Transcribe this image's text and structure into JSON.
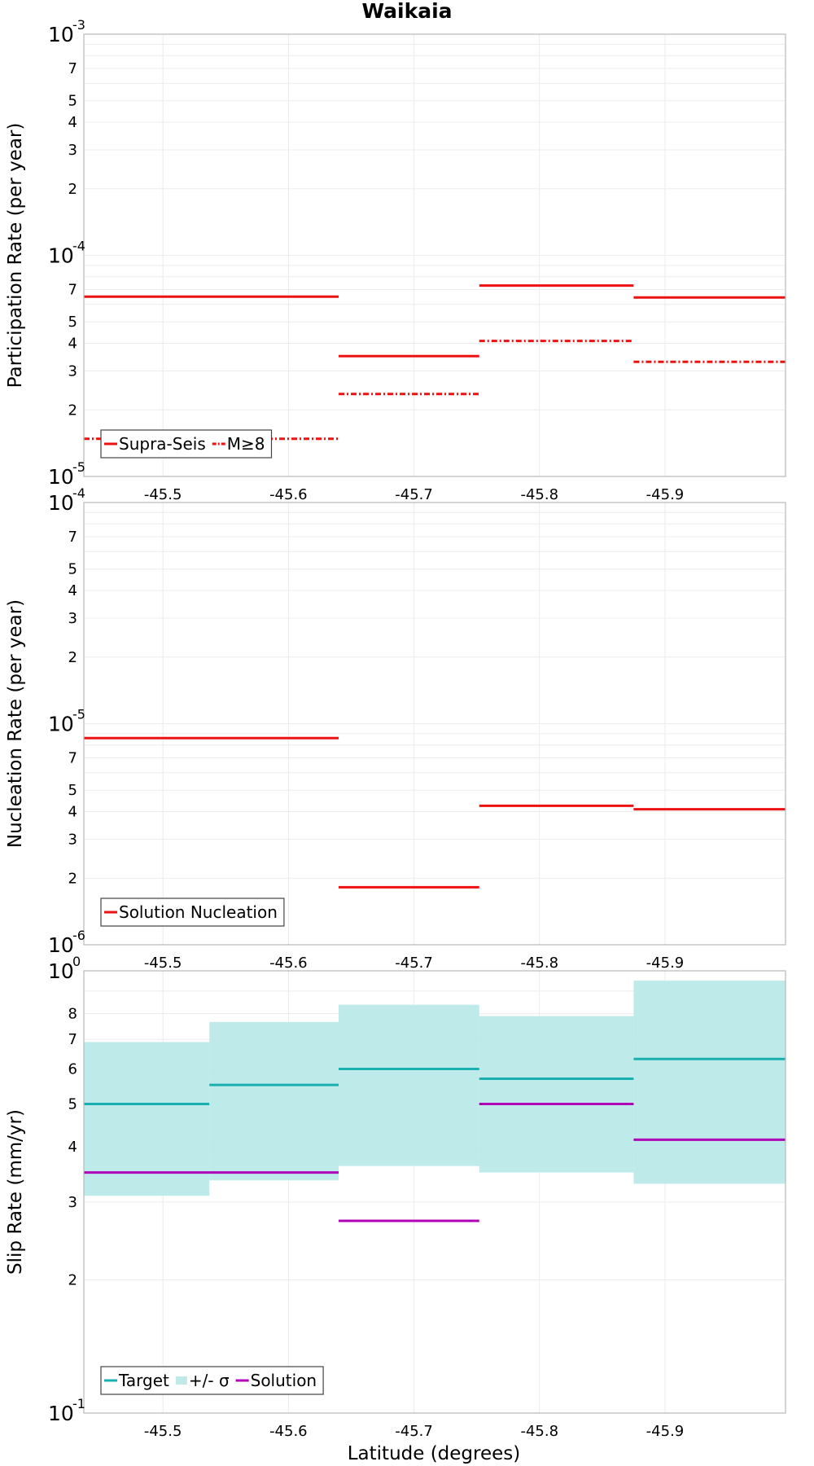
{
  "chart_data": {
    "title": "Waikaia",
    "xlabel": "Latitude (degrees)",
    "xlim": [
      -45.437,
      -45.996
    ],
    "xticks": [
      -45.5,
      -45.6,
      -45.7,
      -45.8,
      -45.9
    ],
    "xtick_labels": [
      "-45.5",
      "-45.6",
      "-45.7",
      "-45.8",
      "-45.9"
    ],
    "panels": [
      {
        "type": "line",
        "ylabel": "Participation Rate (per year)",
        "yscale": "log",
        "ylim": [
          1e-05,
          0.001
        ],
        "decade_labels": [
          {
            "value": 0.001,
            "base": "10",
            "exp": "-3"
          },
          {
            "value": 0.0001,
            "base": "10",
            "exp": "-4"
          },
          {
            "value": 1e-05,
            "base": "10",
            "exp": "-5"
          }
        ],
        "minor_tick_labels": [
          {
            "value": 0.0007,
            "label": "7"
          },
          {
            "value": 0.0005,
            "label": "5"
          },
          {
            "value": 0.0004,
            "label": "4"
          },
          {
            "value": 0.0003,
            "label": "3"
          },
          {
            "value": 0.0002,
            "label": "2"
          },
          {
            "value": 7e-05,
            "label": "7"
          },
          {
            "value": 5e-05,
            "label": "5"
          },
          {
            "value": 4e-05,
            "label": "4"
          },
          {
            "value": 3e-05,
            "label": "3"
          },
          {
            "value": 2e-05,
            "label": "2"
          }
        ],
        "series": [
          {
            "name": "Supra-Seis",
            "color": "#ee1111",
            "dash": "solid",
            "segments": [
              {
                "x0": -45.437,
                "x1": -45.64,
                "y": 6.5e-05
              },
              {
                "x0": -45.64,
                "x1": -45.752,
                "y": 3.5e-05
              },
              {
                "x0": -45.752,
                "x1": -45.875,
                "y": 7.3e-05
              },
              {
                "x0": -45.875,
                "x1": -45.996,
                "y": 6.45e-05
              }
            ]
          },
          {
            "name": "M≥8",
            "color": "#ee1111",
            "dash": "dashdot",
            "segments": [
              {
                "x0": -45.437,
                "x1": -45.64,
                "y": 1.48e-05
              },
              {
                "x0": -45.64,
                "x1": -45.752,
                "y": 2.36e-05
              },
              {
                "x0": -45.752,
                "x1": -45.875,
                "y": 4.1e-05
              },
              {
                "x0": -45.875,
                "x1": -45.996,
                "y": 3.3e-05
              }
            ]
          }
        ],
        "bands": [],
        "legend": {
          "position": "bottom-left",
          "entries": [
            {
              "label": "Supra-Seis",
              "kind": "solid",
              "color": "#ee1111"
            },
            {
              "label": "M≥8",
              "kind": "dashdot",
              "color": "#ee1111"
            }
          ]
        }
      },
      {
        "type": "line",
        "ylabel": "Nucleation Rate (per year)",
        "yscale": "log",
        "ylim": [
          1e-06,
          0.0001
        ],
        "decade_labels": [
          {
            "value": 0.0001,
            "base": "10",
            "exp": "-4"
          },
          {
            "value": 1e-05,
            "base": "10",
            "exp": "-5"
          },
          {
            "value": 1e-06,
            "base": "10",
            "exp": "-6"
          }
        ],
        "minor_tick_labels": [
          {
            "value": 7e-05,
            "label": "7"
          },
          {
            "value": 5e-05,
            "label": "5"
          },
          {
            "value": 4e-05,
            "label": "4"
          },
          {
            "value": 3e-05,
            "label": "3"
          },
          {
            "value": 2e-05,
            "label": "2"
          },
          {
            "value": 7e-06,
            "label": "7"
          },
          {
            "value": 5e-06,
            "label": "5"
          },
          {
            "value": 4e-06,
            "label": "4"
          },
          {
            "value": 3e-06,
            "label": "3"
          },
          {
            "value": 2e-06,
            "label": "2"
          }
        ],
        "series": [
          {
            "name": "Solution Nucleation",
            "color": "#ee1111",
            "dash": "solid",
            "segments": [
              {
                "x0": -45.437,
                "x1": -45.64,
                "y": 8.6e-06
              },
              {
                "x0": -45.64,
                "x1": -45.752,
                "y": 1.82e-06
              },
              {
                "x0": -45.752,
                "x1": -45.875,
                "y": 4.25e-06
              },
              {
                "x0": -45.875,
                "x1": -45.996,
                "y": 4.1e-06
              }
            ]
          }
        ],
        "bands": [],
        "legend": {
          "position": "bottom-left",
          "entries": [
            {
              "label": "Solution Nucleation",
              "kind": "solid",
              "color": "#ee1111"
            }
          ]
        }
      },
      {
        "type": "line",
        "ylabel": "Slip Rate (mm/yr)",
        "yscale": "log",
        "ylim": [
          0.1,
          1.0
        ],
        "decade_labels": [
          {
            "value": 1.0,
            "base": "10",
            "exp": "0"
          },
          {
            "value": 0.1,
            "base": "10",
            "exp": "-1"
          }
        ],
        "minor_tick_labels": [
          {
            "value": 0.8,
            "label": "8"
          },
          {
            "value": 0.7,
            "label": "7"
          },
          {
            "value": 0.6,
            "label": "6"
          },
          {
            "value": 0.5,
            "label": "5"
          },
          {
            "value": 0.4,
            "label": "4"
          },
          {
            "value": 0.3,
            "label": "3"
          },
          {
            "value": 0.2,
            "label": "2"
          }
        ],
        "bands": [
          {
            "name": "+/- σ",
            "color": "#bfeaea",
            "segments": [
              {
                "x0": -45.437,
                "x1": -45.537,
                "ylo": 0.31,
                "yhi": 0.69
              },
              {
                "x0": -45.537,
                "x1": -45.64,
                "ylo": 0.336,
                "yhi": 0.766
              },
              {
                "x0": -45.64,
                "x1": -45.752,
                "ylo": 0.362,
                "yhi": 0.838
              },
              {
                "x0": -45.752,
                "x1": -45.875,
                "ylo": 0.35,
                "yhi": 0.79
              },
              {
                "x0": -45.875,
                "x1": -45.996,
                "ylo": 0.33,
                "yhi": 0.95
              }
            ]
          }
        ],
        "series": [
          {
            "name": "Target",
            "color": "#18b0b0",
            "dash": "solid",
            "segments": [
              {
                "x0": -45.437,
                "x1": -45.537,
                "y": 0.5
              },
              {
                "x0": -45.537,
                "x1": -45.64,
                "y": 0.552
              },
              {
                "x0": -45.64,
                "x1": -45.752,
                "y": 0.6
              },
              {
                "x0": -45.752,
                "x1": -45.875,
                "y": 0.57
              },
              {
                "x0": -45.875,
                "x1": -45.996,
                "y": 0.632
              }
            ]
          },
          {
            "name": "Solution",
            "color": "#b000b8",
            "dash": "solid",
            "segments": [
              {
                "x0": -45.437,
                "x1": -45.64,
                "y": 0.35
              },
              {
                "x0": -45.64,
                "x1": -45.752,
                "y": 0.272
              },
              {
                "x0": -45.752,
                "x1": -45.875,
                "y": 0.5
              },
              {
                "x0": -45.875,
                "x1": -45.996,
                "y": 0.415
              }
            ]
          }
        ],
        "legend": {
          "position": "bottom-left",
          "entries": [
            {
              "label": "Target",
              "kind": "solid",
              "color": "#18b0b0"
            },
            {
              "label": "+/- σ",
              "kind": "band",
              "color": "#bfeaea"
            },
            {
              "label": "Solution",
              "kind": "solid",
              "color": "#b000b8"
            }
          ]
        }
      }
    ]
  }
}
